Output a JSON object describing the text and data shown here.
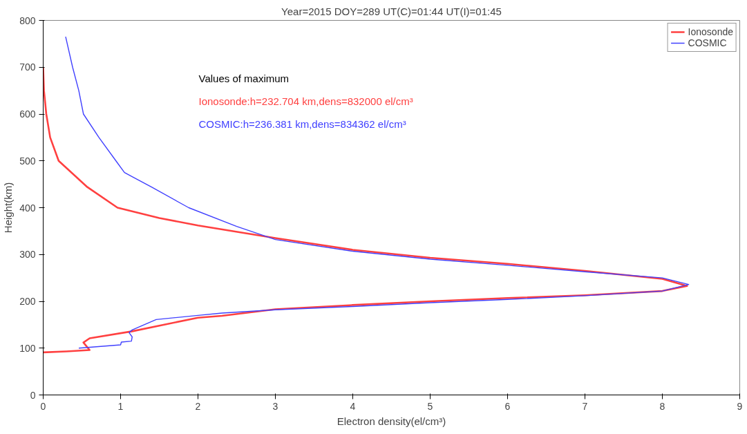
{
  "chart_data": {
    "type": "line",
    "title": "Year=2015 DOY=289 UT(C)=01:44 UT(I)=01:45",
    "xlabel": "Electron density(el/cm³)",
    "ylabel": "Height(km)",
    "xlim": [
      0,
      9
    ],
    "ylim": [
      0,
      800
    ],
    "xticks": [
      0,
      1,
      2,
      3,
      4,
      5,
      6,
      7,
      8,
      9
    ],
    "yticks": [
      0,
      100,
      200,
      300,
      400,
      500,
      600,
      700,
      800
    ],
    "grid": false,
    "legend": "top right",
    "marker": "none",
    "line_style": "solid",
    "annotations": [
      "Values of maximum",
      "Ionosonde:h=232.704 km,dens=832000 el/cm³",
      "COSMIC:h=236.381 km,dens=834362 el/cm³"
    ],
    "series": [
      {
        "name": "Ionosonde",
        "color": "#ff4040",
        "x": [
          0,
          0.3,
          0.6,
          0.52,
          0.6,
          1.15,
          2,
          2.31,
          3,
          4,
          5,
          6,
          7,
          8,
          8.32,
          8,
          7,
          6,
          5,
          4,
          3,
          2,
          1.5,
          0.96,
          0.57,
          0.2,
          0.09,
          0.04,
          0.01,
          0
        ],
        "values": [
          91,
          93,
          96,
          112,
          121,
          136,
          165,
          169,
          183,
          192,
          200,
          207,
          213,
          222,
          233,
          248,
          265,
          280,
          293,
          310,
          335,
          362,
          378,
          400,
          444,
          500,
          550,
          600,
          650,
          700
        ]
      },
      {
        "name": "COSMIC",
        "color": "#4040ff",
        "x": [
          0.46,
          1.0,
          1.01,
          1.14,
          1.15,
          1.11,
          1.15,
          1.46,
          2,
          2.31,
          3,
          4,
          5,
          6,
          7,
          8,
          8.34,
          8,
          7,
          6,
          5,
          4,
          3,
          2.5,
          1.88,
          1.4,
          1.05,
          0.94,
          0.72,
          0.52,
          0.46,
          0.38,
          0.29
        ],
        "values": [
          100,
          107,
          113,
          115,
          124,
          133,
          139,
          161,
          170,
          175,
          182,
          189,
          197,
          204,
          212,
          222,
          236,
          250,
          263,
          277,
          290,
          307,
          332,
          360,
          400,
          444,
          475,
          500,
          550,
          600,
          650,
          700,
          765
        ]
      }
    ]
  }
}
